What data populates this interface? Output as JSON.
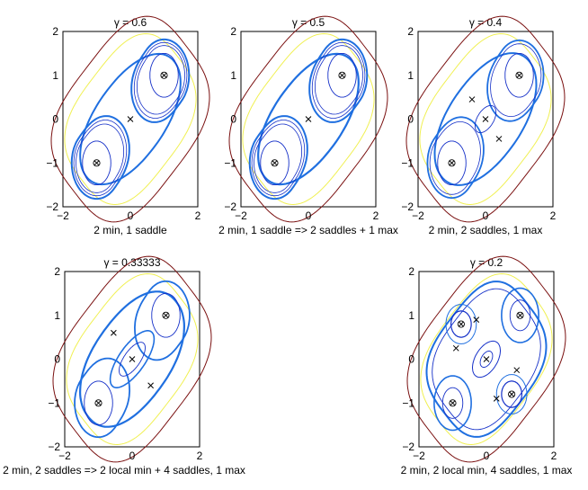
{
  "chart_data": [
    {
      "type": "contour",
      "title": "γ = 0.6",
      "xlabel": "2 min, 1 saddle",
      "xlim": [
        -2,
        2
      ],
      "ylim": [
        -2,
        2
      ],
      "xticks": [
        "−2",
        "0",
        "2"
      ],
      "yticks": [
        "2",
        "1",
        "0",
        "−1",
        "−2"
      ],
      "minima": [
        [
          -1,
          -1
        ],
        [
          1,
          1
        ]
      ],
      "saddles": [
        [
          0,
          0
        ]
      ],
      "maxima": [],
      "outer_levels": 2
    },
    {
      "type": "contour",
      "title": "γ = 0.5",
      "xlabel": "2 min, 1 saddle => 2 saddles + 1 max",
      "xlim": [
        -2,
        2
      ],
      "ylim": [
        -2,
        2
      ],
      "xticks": [
        "−2",
        "0",
        "2"
      ],
      "yticks": [
        "2",
        "1",
        "0",
        "−1",
        "−2"
      ],
      "minima": [
        [
          -1,
          -1
        ],
        [
          1,
          1
        ]
      ],
      "saddles": [
        [
          0,
          0
        ]
      ],
      "maxima": [],
      "outer_levels": 2
    },
    {
      "type": "contour",
      "title": "γ = 0.4",
      "xlabel": "2 min, 2 saddles, 1 max",
      "xlim": [
        -2,
        2
      ],
      "ylim": [
        -2,
        2
      ],
      "xticks": [
        "−2",
        "0",
        "2"
      ],
      "yticks": [
        "2",
        "1",
        "0",
        "−1",
        "−2"
      ],
      "minima": [
        [
          -1,
          -1
        ],
        [
          1,
          1
        ]
      ],
      "saddles": [
        [
          -0.4,
          0.45
        ],
        [
          0.4,
          -0.45
        ]
      ],
      "maxima": [
        [
          0,
          0
        ]
      ],
      "outer_levels": 2
    },
    {
      "type": "contour",
      "title": "γ = 0.33333",
      "xlabel": "2 min, 2 saddles => 2 local min + 4 saddles, 1 max",
      "xlim": [
        -2,
        2
      ],
      "ylim": [
        -2,
        2
      ],
      "xticks": [
        "−2",
        "0",
        "2"
      ],
      "yticks": [
        "2",
        "1",
        "0",
        "−1",
        "−2"
      ],
      "minima": [
        [
          -1,
          -1
        ],
        [
          1,
          1
        ]
      ],
      "saddles": [
        [
          -0.55,
          0.6
        ],
        [
          0.55,
          -0.6
        ]
      ],
      "maxima": [
        [
          0,
          0
        ]
      ],
      "outer_levels": 2
    },
    {
      "type": "contour",
      "title": "γ = 0.2",
      "xlabel": "2 min, 2 local min, 4 saddles, 1 max",
      "xlim": [
        -2,
        2
      ],
      "ylim": [
        -2,
        2
      ],
      "xticks": [
        "−2",
        "0",
        "2"
      ],
      "yticks": [
        "2",
        "1",
        "0",
        "−1",
        "−2"
      ],
      "minima": [
        [
          -1,
          -1
        ],
        [
          1,
          1
        ],
        [
          -0.75,
          0.8
        ],
        [
          0.75,
          -0.8
        ]
      ],
      "saddles": [
        [
          -0.3,
          0.9
        ],
        [
          0.3,
          -0.9
        ],
        [
          -0.9,
          0.25
        ],
        [
          0.9,
          -0.25
        ]
      ],
      "maxima": [
        [
          0,
          0
        ]
      ],
      "outer_levels": 2
    }
  ],
  "colors": {
    "outer1": "#7a1010",
    "outer2": "#f0f050",
    "separatrix": "#1f6fe0",
    "inner": "#1530c8",
    "marker": "#000000"
  }
}
